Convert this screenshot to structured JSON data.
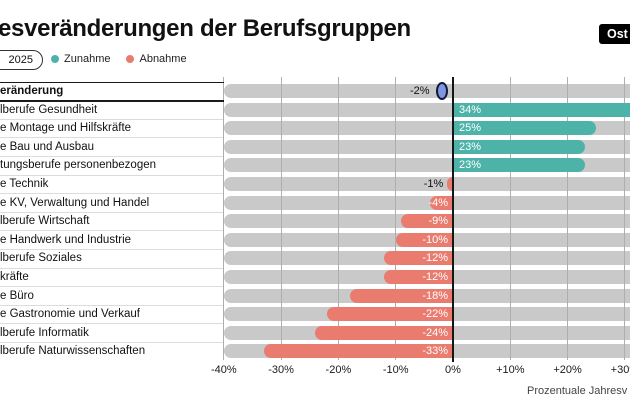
{
  "header": {
    "title": "esveränderungen der Berufsgruppen",
    "brand_badge": "Ost",
    "period_pill": "2025",
    "legend": [
      {
        "label": "Zunahme",
        "color": "#4db3a9"
      },
      {
        "label": "Abnahme",
        "color": "#e97b6f"
      }
    ]
  },
  "chart_data": {
    "type": "bar",
    "orientation": "horizontal",
    "title": "esveränderungen der Berufsgruppen",
    "categories": [
      "eränderung",
      "lberufe Gesundheit",
      "e Montage und Hilfskräfte",
      "e Bau und Ausbau",
      "tungsberufe personenbezogen",
      "e Technik",
      "e KV, Verwaltung und Handel",
      "lberufe Wirtschaft",
      "e Handwerk und Industrie",
      "lberufe Soziales",
      "kräfte",
      "e Büro",
      "e Gastronomie und Verkauf",
      "lberufe Informatik",
      "lberufe Naturwissenschaften"
    ],
    "values": [
      -2,
      34,
      25,
      23,
      23,
      -1,
      -4,
      -9,
      -10,
      -12,
      -12,
      -18,
      -22,
      -24,
      -33
    ],
    "value_labels": [
      "-2%",
      "34%",
      "25%",
      "23%",
      "23%",
      "-1%",
      "-4%",
      "-9%",
      "-10%",
      "-12%",
      "-12%",
      "-18%",
      "-22%",
      "-24%",
      "-33%"
    ],
    "row_styles": [
      "marker",
      "bar",
      "bar",
      "bar",
      "bar",
      "bar",
      "bar",
      "bar",
      "bar",
      "bar",
      "bar",
      "bar",
      "bar",
      "bar",
      "bar"
    ],
    "first_row_bold": true,
    "x_ticks": [
      {
        "label": "-40%",
        "value": -40
      },
      {
        "label": "-30%",
        "value": -30
      },
      {
        "label": "-20%",
        "value": -20
      },
      {
        "label": "-10%",
        "value": -10
      },
      {
        "label": "0%",
        "value": 0
      },
      {
        "label": "+10%",
        "value": 10
      },
      {
        "label": "+20%",
        "value": 20
      },
      {
        "label": "+30%",
        "value": 30
      }
    ],
    "xlim": [
      -40,
      31
    ],
    "grid": "vertical",
    "legend_position": "top-left",
    "axis_caption": "Prozentuale Jahresv",
    "colors": {
      "increase": "#4db3a9",
      "decrease": "#e97b6f",
      "track": "#c9c9c9",
      "marker_fill": "#7d98e0",
      "marker_border": "#15173a",
      "zero_line": "#161616",
      "gridline": "#aeaeae"
    }
  }
}
